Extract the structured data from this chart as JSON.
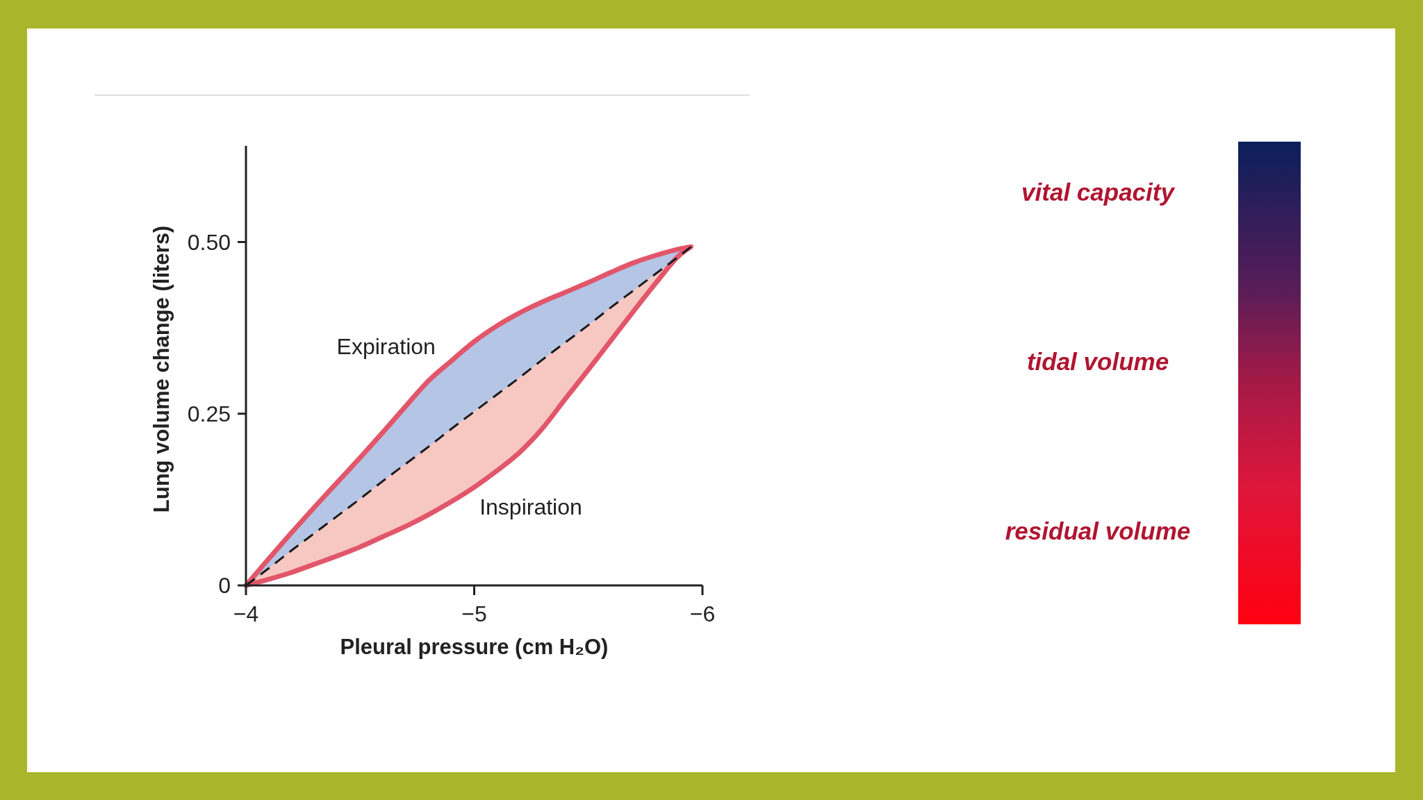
{
  "chart_data": [
    {
      "type": "line",
      "xlabel": "Pleural pressure (cm H₂O)",
      "ylabel": "Lung volume change (liters)",
      "xlim": [
        -4,
        -6
      ],
      "xticks": [
        {
          "value": -4,
          "label": "−4"
        },
        {
          "value": -5,
          "label": "−5"
        },
        {
          "value": -6,
          "label": "−6"
        }
      ],
      "ylim": [
        0,
        0.64
      ],
      "yticks": [
        0,
        0.25,
        {
          "value": 0.5,
          "label": "0.50"
        }
      ],
      "x": [
        -4,
        -4.1,
        -4.2,
        -4.3,
        -4.4,
        -4.5,
        -4.6,
        -4.7,
        -4.8,
        -4.9,
        -5,
        -5.1,
        -5.2,
        -5.3,
        -5.4,
        -5.5,
        -5.6,
        -5.7,
        -5.8,
        -5.9,
        -5.95
      ],
      "series": [
        {
          "type": "line",
          "color": "#1a1a1a",
          "line_style": "dashed",
          "values": [
            0,
            0.025,
            0.051,
            0.076,
            0.101,
            0.126,
            0.152,
            0.177,
            0.202,
            0.228,
            0.253,
            0.278,
            0.303,
            0.329,
            0.354,
            0.379,
            0.405,
            0.43,
            0.455,
            0.48,
            0.493
          ],
          "lower": [
            0,
            0.009,
            0.019,
            0.031,
            0.043,
            0.056,
            0.071,
            0.086,
            0.103,
            0.122,
            0.143,
            0.167,
            0.194,
            0.229,
            0.272,
            0.314,
            0.357,
            0.4,
            0.442,
            0.481,
            0.493
          ],
          "upper": [
            0,
            0.039,
            0.077,
            0.114,
            0.15,
            0.186,
            0.223,
            0.261,
            0.298,
            0.327,
            0.355,
            0.378,
            0.397,
            0.413,
            0.427,
            0.441,
            0.456,
            0.47,
            0.481,
            0.49,
            0.493
          ]
        }
      ],
      "annotations": [
        "Expiration",
        "Inspiration"
      ]
    },
    {
      "type": "other",
      "annotations": [
        "vital capacity",
        "tidal volume",
        "residual volume"
      ]
    }
  ]
}
